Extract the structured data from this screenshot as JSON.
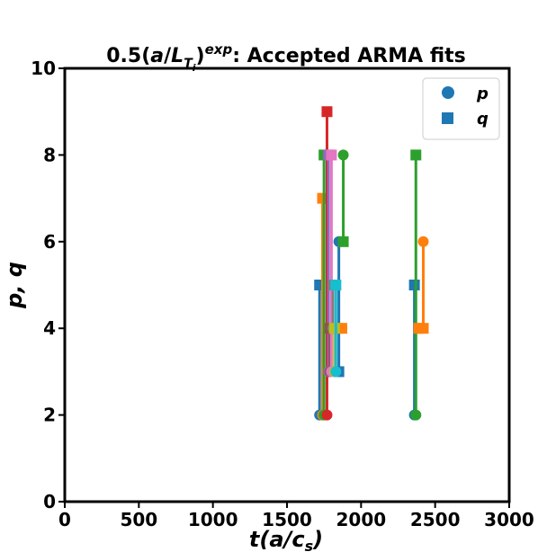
{
  "chart_data": {
    "type": "scatter",
    "title_prefix": "0.5(",
    "title_italic_a": "a",
    "title_slash": "/",
    "title_italic_L": "L",
    "title_sub_T": "T",
    "title_sub_i": "i",
    "title_close": ")",
    "title_sup": "exp",
    "title_suffix": ": Accepted ARMA fits",
    "xlabel": "t(a/c",
    "xlabel_sub": "s",
    "xlabel_close": ")",
    "ylabel": "p, q",
    "xlim": [
      0,
      3000
    ],
    "ylim": [
      0,
      10
    ],
    "xticks": [
      0,
      500,
      1000,
      1500,
      2000,
      2500,
      3000
    ],
    "yticks": [
      0,
      2,
      4,
      6,
      8,
      10
    ],
    "legend": {
      "placement": "top-right",
      "entries": [
        {
          "label": "p",
          "marker": "circle",
          "color": "#1f77b4"
        },
        {
          "label": "q",
          "marker": "square",
          "color": "#1f77b4"
        }
      ]
    },
    "grid": false,
    "series": [
      {
        "color": "#1f77b4",
        "t": 1720,
        "p": 2,
        "q": 5
      },
      {
        "color": "#1f77b4",
        "t": 1850,
        "p": 6,
        "q": 3
      },
      {
        "color": "#ff7f0e",
        "t": 1740,
        "p": 2,
        "q": 7
      },
      {
        "color": "#ff7f0e",
        "t": 1870,
        "p": 4,
        "q": 4
      },
      {
        "color": "#2ca02c",
        "t": 1750,
        "p": 2,
        "q": 8
      },
      {
        "color": "#2ca02c",
        "t": 1880,
        "p": 8,
        "q": 6
      },
      {
        "color": "#d62728",
        "t": 1770,
        "p": 2,
        "q": 9
      },
      {
        "color": "#9467bd",
        "t": 1780,
        "p": 3,
        "q": 8
      },
      {
        "color": "#8c564b",
        "t": 1790,
        "p": 3,
        "q": 4
      },
      {
        "color": "#e377c2",
        "t": 1800,
        "p": 3,
        "q": 8
      },
      {
        "color": "#7f7f7f",
        "t": 1810,
        "p": 4,
        "q": 5
      },
      {
        "color": "#bcbd22",
        "t": 1820,
        "p": 3,
        "q": 4
      },
      {
        "color": "#17becf",
        "t": 1830,
        "p": 3,
        "q": 5
      },
      {
        "color": "#1f77b4",
        "t": 2360,
        "p": 2,
        "q": 5
      },
      {
        "color": "#2ca02c",
        "t": 2370,
        "p": 2,
        "q": 8
      },
      {
        "color": "#ff7f0e",
        "t": 2390,
        "p": 4,
        "q": 4
      },
      {
        "color": "#ff7f0e",
        "t": 2420,
        "p": 6,
        "q": 4
      }
    ]
  }
}
